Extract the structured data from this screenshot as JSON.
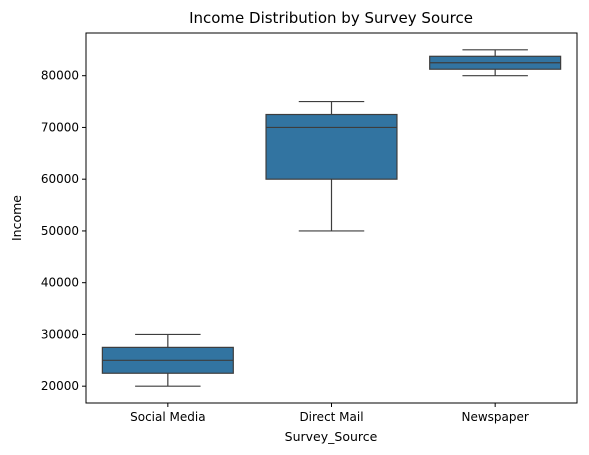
{
  "chart_data": {
    "type": "box",
    "title": "Income Distribution by Survey Source",
    "xlabel": "Survey_Source",
    "ylabel": "Income",
    "categories": [
      "Social Media",
      "Direct Mail",
      "Newspaper"
    ],
    "boxes": [
      {
        "category": "Social Media",
        "min": 20000,
        "q1": 22500,
        "median": 25000,
        "q3": 27500,
        "max": 30000
      },
      {
        "category": "Direct Mail",
        "min": 50000,
        "q1": 60000,
        "median": 70000,
        "q3": 72500,
        "max": 75000
      },
      {
        "category": "Newspaper",
        "min": 80000,
        "q1": 81250,
        "median": 82500,
        "q3": 83750,
        "max": 85000
      }
    ],
    "ylim": [
      16750,
      88250
    ],
    "yticks": [
      20000,
      30000,
      40000,
      50000,
      60000,
      70000,
      80000
    ],
    "ytick_labels": [
      "20000",
      "30000",
      "40000",
      "50000",
      "60000",
      "70000",
      "80000"
    ],
    "grid": false,
    "box_color": "#3274a1",
    "line_color": "#3d3d3d"
  }
}
